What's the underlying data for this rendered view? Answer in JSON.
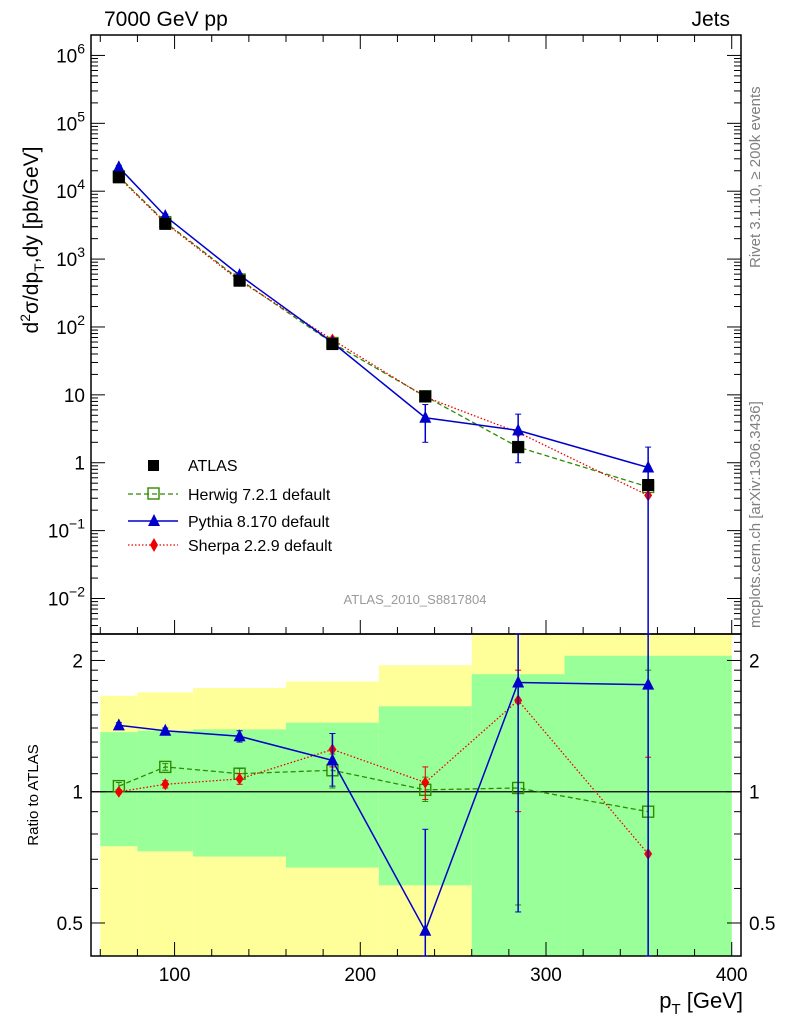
{
  "header": {
    "left": "7000 GeV pp",
    "right": "Jets"
  },
  "side_labels": {
    "rivet": "Rivet 3.1.10, ≥ 200k events",
    "mcplots": "mcplots.cern.ch [arXiv:1306.3436]"
  },
  "watermark": "ATLAS_2010_S8817804",
  "colors": {
    "herwig": "#2e8b00",
    "pythia": "#0000cc",
    "sherpa": "#ee0000",
    "atlas": "#000000",
    "band_inner": "#99ff99",
    "band_outer": "#ffff99"
  },
  "chart_data": [
    {
      "type": "line",
      "panel": "main",
      "scale": "log",
      "ylim": [
        0.003,
        2000000
      ],
      "ylabel_parts": {
        "d": "d",
        "sup2": "2",
        "sigma": "σ/dp",
        "subT": "T",
        "rest": ",dy [pb/GeV]"
      },
      "y_tick_labels": [
        {
          "value": 0.01,
          "base": "10",
          "exp": "−2"
        },
        {
          "value": 0.1,
          "base": "10",
          "exp": "−1"
        },
        {
          "value": 1,
          "base": "1",
          "exp": ""
        },
        {
          "value": 10,
          "base": "10",
          "exp": ""
        },
        {
          "value": 100,
          "base": "10",
          "exp": "2"
        },
        {
          "value": 1000,
          "base": "10",
          "exp": "3"
        },
        {
          "value": 10000,
          "base": "10",
          "exp": "4"
        },
        {
          "value": 100000,
          "base": "10",
          "exp": "5"
        },
        {
          "value": 1000000,
          "base": "10",
          "exp": "6"
        }
      ],
      "legend": [
        {
          "key": "atlas",
          "label": "ATLAS"
        },
        {
          "key": "herwig",
          "label": "Herwig 7.2.1 default"
        },
        {
          "key": "pythia",
          "label": "Pythia 8.170 default"
        },
        {
          "key": "sherpa",
          "label": "Sherpa 2.2.9 default"
        }
      ],
      "x": [
        70,
        95,
        135,
        185,
        235,
        285,
        355
      ],
      "series": [
        {
          "key": "atlas",
          "values": [
            16000,
            3300,
            480,
            56,
            9.5,
            1.7,
            0.47
          ]
        },
        {
          "key": "herwig",
          "values": [
            16500,
            3500,
            500,
            58,
            9.5,
            1.7,
            0.44
          ]
        },
        {
          "key": "pythia",
          "values": [
            22500,
            4300,
            580,
            59,
            4.6,
            3.0,
            0.85
          ],
          "err_low": [
            21000,
            4000,
            545,
            54,
            2.0,
            1.0,
            0.0005
          ],
          "err_high": [
            24000,
            4600,
            615,
            64,
            7.2,
            5.2,
            1.7
          ]
        },
        {
          "key": "sherpa",
          "values": [
            16000,
            3400,
            480,
            65,
            9.3,
            2.8,
            0.33
          ]
        }
      ]
    },
    {
      "type": "line",
      "panel": "ratio",
      "scale": "log",
      "ylim": [
        0.42,
        2.3
      ],
      "xlim": [
        55,
        405
      ],
      "ylabel": "Ratio to ATLAS",
      "xlabel_parts": {
        "p": "p",
        "subT": "T",
        "rest": " [GeV]"
      },
      "x_ticks": [
        100,
        200,
        300,
        400
      ],
      "y_ticks": [
        {
          "value": 0.5,
          "label": "0.5"
        },
        {
          "value": 1,
          "label": "1"
        },
        {
          "value": 2,
          "label": "2"
        }
      ],
      "bins": [
        [
          60,
          80
        ],
        [
          80,
          110
        ],
        [
          110,
          160
        ],
        [
          160,
          210
        ],
        [
          210,
          260
        ],
        [
          260,
          310
        ],
        [
          310,
          400
        ]
      ],
      "band_inner": [
        [
          0.75,
          1.37
        ],
        [
          0.73,
          1.38
        ],
        [
          0.71,
          1.39
        ],
        [
          0.67,
          1.44
        ],
        [
          0.61,
          1.57
        ],
        [
          0.37,
          1.86
        ],
        [
          0.37,
          2.05
        ]
      ],
      "band_outer": [
        [
          0.37,
          1.66
        ],
        [
          0.37,
          1.69
        ],
        [
          0.37,
          1.73
        ],
        [
          0.37,
          1.79
        ],
        [
          0.37,
          1.95
        ],
        [
          0.37,
          2.3
        ],
        [
          0.37,
          2.3
        ]
      ],
      "x": [
        70,
        95,
        135,
        185,
        235,
        285,
        355
      ],
      "series": [
        {
          "key": "herwig",
          "values": [
            1.03,
            1.14,
            1.1,
            1.12,
            1.01,
            1.02,
            0.9
          ],
          "err_low": [
            1.01,
            1.12,
            1.07,
            1.02,
            0.95,
            0.55,
            0.3
          ],
          "err_high": [
            1.05,
            1.16,
            1.13,
            1.22,
            1.08,
            1.75,
            1.9
          ]
        },
        {
          "key": "pythia",
          "values": [
            1.42,
            1.38,
            1.34,
            1.18,
            0.48,
            1.78,
            1.76
          ],
          "err_low": [
            1.4,
            1.36,
            1.3,
            1.03,
            0.21,
            0.53,
            0.3
          ],
          "err_high": [
            1.44,
            1.4,
            1.38,
            1.36,
            0.82,
            2.3,
            2.3
          ]
        },
        {
          "key": "sherpa",
          "values": [
            1.0,
            1.04,
            1.07,
            1.25,
            1.05,
            1.62,
            0.72
          ],
          "err_low": [
            0.99,
            1.02,
            1.04,
            1.14,
            0.96,
            0.9,
            0.3
          ],
          "err_high": [
            1.01,
            1.06,
            1.1,
            1.36,
            1.14,
            1.9,
            1.2
          ]
        }
      ]
    }
  ]
}
